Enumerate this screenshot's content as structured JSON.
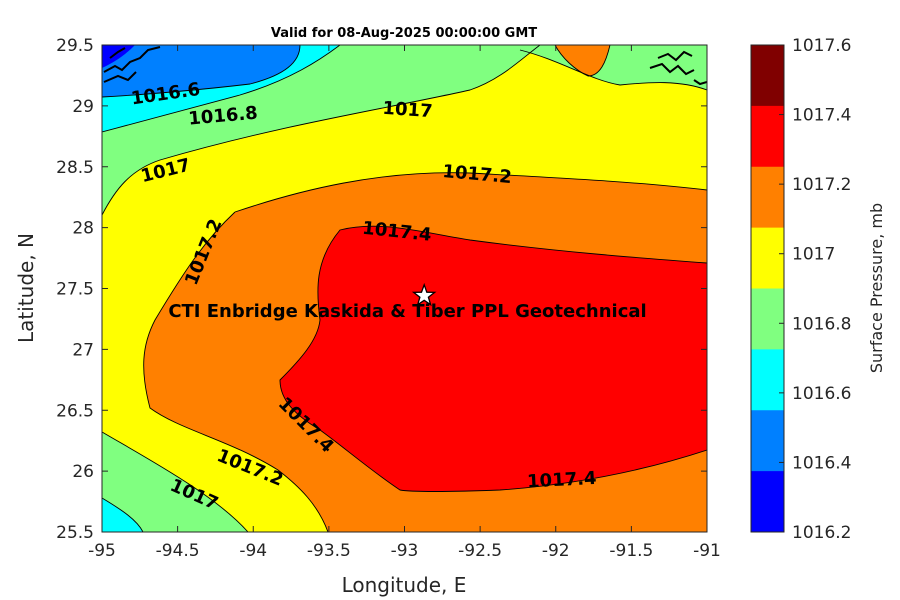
{
  "map": {
    "title": "Valid for 08-Aug-2025 00:00:00 GMT",
    "xlabel": "Longitude, E",
    "ylabel": "Latitude, N",
    "xlim": [
      -95,
      -91
    ],
    "ylim": [
      25.5,
      29.5
    ],
    "xticks": [
      "-95",
      "-94.5",
      "-94",
      "-93.5",
      "-93",
      "-92.5",
      "-92",
      "-91.5",
      "-91"
    ],
    "yticks": [
      "25.5",
      "26",
      "26.5",
      "27",
      "27.5",
      "28",
      "28.5",
      "29",
      "29.5"
    ],
    "site_label": "CTI Enbridge  Kaskida & Tiber PPL Geotechnical",
    "site_marker": {
      "lon": -92.87,
      "lat": 27.44,
      "symbol": "star"
    }
  },
  "contour_labels": [
    {
      "text": "1016.6",
      "lon": -94.58,
      "lat": 29.1,
      "angle": -8
    },
    {
      "text": "1016.8",
      "lon": -94.2,
      "lat": 28.92,
      "angle": -5
    },
    {
      "text": "1017",
      "lon": -92.98,
      "lat": 28.97,
      "angle": 4
    },
    {
      "text": "1017",
      "lon": -94.58,
      "lat": 28.47,
      "angle": -14
    },
    {
      "text": "1017.2",
      "lon": -92.52,
      "lat": 28.44,
      "angle": 5
    },
    {
      "text": "1017.2",
      "lon": -94.33,
      "lat": 27.8,
      "angle": -68
    },
    {
      "text": "1017.4",
      "lon": -93.05,
      "lat": 27.97,
      "angle": 6
    },
    {
      "text": "1017.4",
      "lon": -93.65,
      "lat": 26.38,
      "angle": 45
    },
    {
      "text": "1017.2",
      "lon": -94.02,
      "lat": 26.03,
      "angle": 22
    },
    {
      "text": "1017",
      "lon": -94.39,
      "lat": 25.81,
      "angle": 24
    },
    {
      "text": "1017.4",
      "lon": -91.96,
      "lat": 25.93,
      "angle": -3
    }
  ],
  "colorbar": {
    "label": "Surface Pressure, mb",
    "ticks": [
      "1017.6",
      "1017.4",
      "1017.2",
      "1017",
      "1016.8",
      "1016.6",
      "1016.4",
      "1016.2"
    ],
    "levels": [
      {
        "value": 1017.5,
        "color": "#800000"
      },
      {
        "value": 1017.3,
        "color": "#ff0000"
      },
      {
        "value": 1017.1,
        "color": "#ff8000"
      },
      {
        "value": 1016.9,
        "color": "#ffff00"
      },
      {
        "value": 1016.7,
        "color": "#80ff80"
      },
      {
        "value": 1016.5,
        "color": "#00ffff"
      },
      {
        "value": 1016.3,
        "color": "#0080ff"
      },
      {
        "value": 1016.1,
        "color": "#0000ff"
      }
    ]
  }
}
